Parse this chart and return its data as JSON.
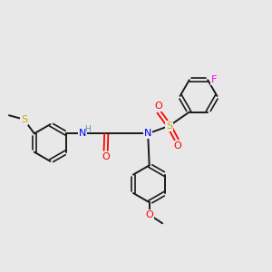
{
  "background_color": "#e8e8e8",
  "bond_color": "#1a1a1a",
  "atom_colors": {
    "N": "#0000ff",
    "O": "#ff0000",
    "S_sulfonyl": "#ccaa00",
    "S_thio": "#ccaa00",
    "F": "#ff00ff",
    "H": "#5599aa",
    "C": "#1a1a1a"
  },
  "figsize": [
    3.0,
    3.0
  ],
  "dpi": 100
}
